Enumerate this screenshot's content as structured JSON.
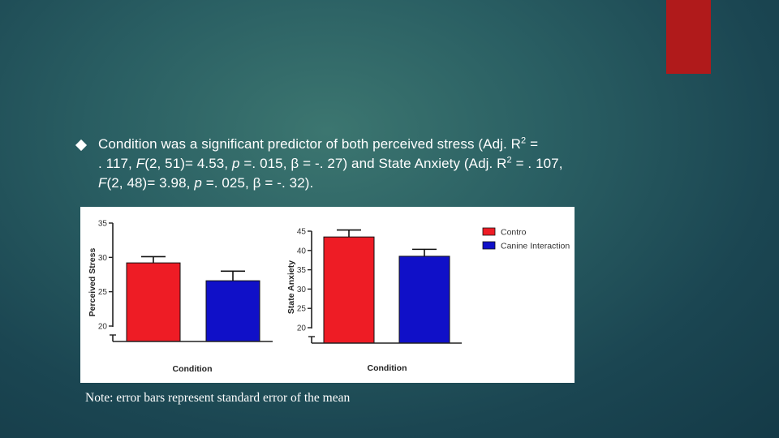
{
  "slide": {
    "accent_color": "#b01a1b",
    "bullet": {
      "icon": "diamond-bullet-icon",
      "line1_pre": "Condition was a significant predictor of both perceived stress (Adj. R",
      "line1_sup": "2",
      "line1_post": " =",
      "line2_pre": ". 117, ",
      "line2_f": "F",
      "line2_mid": "(2, 51)= 4.53, ",
      "line2_p": "p",
      "line2_post": " =. 015, β = -. 27) and State Anxiety (Adj. R",
      "line2_sup": "2",
      "line2_end": " = . 107,",
      "line3_f": "F",
      "line3_mid": "(2, 48)= 3.98, ",
      "line3_p": "p",
      "line3_post": " =. 025, β = -. 32)."
    },
    "note": "Note: error bars represent standard error of the mean"
  },
  "chart_data": [
    {
      "type": "bar",
      "categories": [
        "Contro",
        "Canine Interaction"
      ],
      "values": [
        29.2,
        26.6
      ],
      "errors": [
        0.9,
        1.4
      ],
      "xlabel": "Condition",
      "ylabel": "Perceived Stress",
      "ylim": [
        20,
        35
      ],
      "yticks": [
        20,
        25,
        30,
        35
      ],
      "axis_break": true,
      "colors": [
        "#ee1c25",
        "#1010c8"
      ],
      "legend": "none"
    },
    {
      "type": "bar",
      "categories": [
        "Contro",
        "Canine Interaction"
      ],
      "values": [
        43.5,
        38.5
      ],
      "errors": [
        1.8,
        1.8
      ],
      "xlabel": "Condition",
      "ylabel": "State Anxiety",
      "ylim": [
        20,
        45
      ],
      "yticks": [
        20,
        25,
        30,
        35,
        40,
        45
      ],
      "axis_break": true,
      "colors": [
        "#ee1c25",
        "#1010c8"
      ],
      "legend": "right",
      "legend_entries": [
        "Contro",
        "Canine Interaction"
      ]
    }
  ]
}
